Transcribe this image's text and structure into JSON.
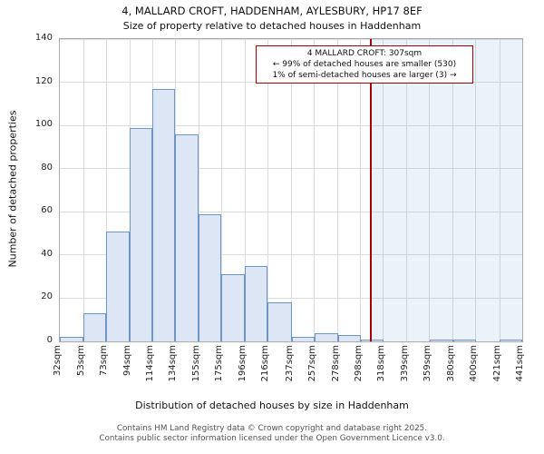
{
  "chart_data": {
    "type": "bar",
    "title": "4, MALLARD CROFT, HADDENHAM, AYLESBURY, HP17 8EF",
    "subtitle": "Size of property relative to detached houses in Haddenham",
    "xlabel": "Distribution of detached houses by size in Haddenham",
    "ylabel": "Number of detached properties",
    "bin_edges_sqm": [
      32,
      53,
      73,
      94,
      114,
      134,
      155,
      175,
      196,
      216,
      237,
      257,
      278,
      298,
      318,
      339,
      359,
      380,
      400,
      421,
      441
    ],
    "categories": [
      "32sqm",
      "53sqm",
      "73sqm",
      "94sqm",
      "114sqm",
      "134sqm",
      "155sqm",
      "175sqm",
      "196sqm",
      "216sqm",
      "237sqm",
      "257sqm",
      "278sqm",
      "298sqm",
      "318sqm",
      "339sqm",
      "359sqm",
      "380sqm",
      "400sqm",
      "421sqm",
      "441sqm"
    ],
    "values": [
      2,
      13,
      51,
      99,
      117,
      96,
      59,
      31,
      35,
      18,
      2,
      4,
      3,
      1,
      0,
      0,
      1,
      1,
      0,
      1
    ],
    "ylim": [
      0,
      140
    ],
    "yticks": [
      0,
      20,
      40,
      60,
      80,
      100,
      120,
      140
    ],
    "grid": true,
    "legend_position": "none",
    "marker": {
      "value_sqm": 307,
      "line_color": "#a40000"
    },
    "annotation": {
      "line1": "4 MALLARD CROFT: 307sqm",
      "line2": "← 99% of detached houses are smaller (530)",
      "line3": "1% of semi-detached houses are larger (3) →",
      "border_color": "#a40000"
    },
    "colors": {
      "bar_fill": "#dce6f4",
      "bar_border": "#6d96c8",
      "grid": "#dcdcdc",
      "shade_right": "rgba(110,155,215,0.13)"
    }
  },
  "footer": {
    "line1": "Contains HM Land Registry data © Crown copyright and database right 2025.",
    "line2": "Contains public sector information licensed under the Open Government Licence v3.0."
  }
}
